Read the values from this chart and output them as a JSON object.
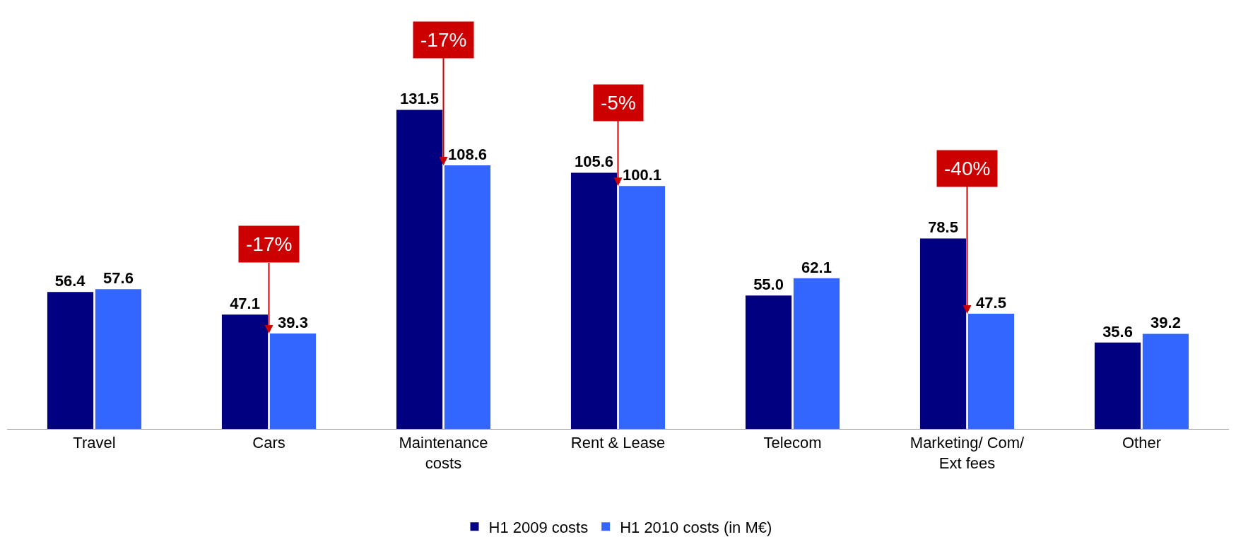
{
  "chart_data": {
    "type": "bar",
    "categories": [
      "Travel",
      "Cars",
      "Maintenance costs",
      "Rent & Lease",
      "Telecom",
      "Marketing/ Com/ Ext fees",
      "Other"
    ],
    "series": [
      {
        "name": "H1 2009 costs",
        "color": "#000080",
        "values": [
          56.4,
          47.1,
          131.5,
          105.6,
          55.0,
          78.5,
          35.6
        ],
        "value_labels": [
          "56.4",
          "47.1",
          "131.5",
          "105.6",
          "55.0",
          "78.5",
          "35.6"
        ]
      },
      {
        "name": "H1 2010 costs (in M€)",
        "color": "#3366ff",
        "values": [
          57.6,
          39.3,
          108.6,
          100.1,
          62.1,
          47.5,
          39.2
        ],
        "value_labels": [
          "57.6",
          "39.3",
          "108.6",
          "100.1",
          "62.1",
          "47.5",
          "39.2"
        ]
      }
    ],
    "data_labels": true,
    "grid": false,
    "legend": "bottom",
    "annotations": [
      {
        "text": "-17%",
        "x": "Cars",
        "y": 39.3
      },
      {
        "text": "-17%",
        "x": "Maintenance costs",
        "y": 108.6
      },
      {
        "text": "-5%",
        "x": "Rent & Lease",
        "y": 100.1
      },
      {
        "text": "-40%",
        "x": "Marketing/ Com/ Ext fees",
        "y": 47.5
      }
    ]
  }
}
